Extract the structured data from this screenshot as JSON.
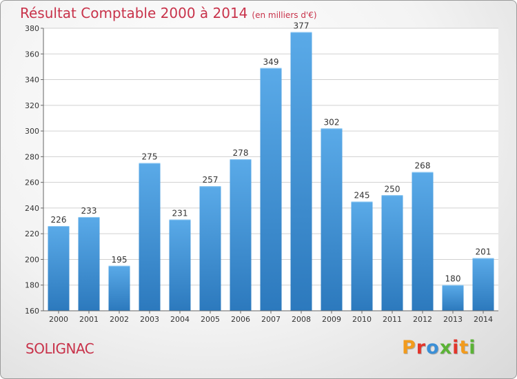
{
  "chart_data": {
    "type": "bar",
    "title": "Résultat Comptable 2000 à 2014",
    "subtitle": "(en milliers d'€)",
    "categories": [
      "2000",
      "2001",
      "2002",
      "2003",
      "2004",
      "2005",
      "2006",
      "2007",
      "2008",
      "2009",
      "2010",
      "2011",
      "2012",
      "2013",
      "2014"
    ],
    "values": [
      226,
      233,
      195,
      275,
      231,
      257,
      278,
      349,
      377,
      302,
      245,
      250,
      268,
      180,
      201
    ],
    "ylim": [
      160,
      380
    ],
    "yticks": [
      160,
      180,
      200,
      220,
      240,
      260,
      280,
      300,
      320,
      340,
      360,
      380
    ],
    "grid": true,
    "xlabel": "",
    "ylabel": ""
  },
  "commune": "SOLIGNAC",
  "brand": {
    "letters": [
      "P",
      "r",
      "o",
      "x",
      "i",
      "t",
      "i"
    ],
    "colors": [
      "#f29b1d",
      "#e2352b",
      "#3b8fd6",
      "#5bb336",
      "#e2352b",
      "#f29b1d",
      "#5bb336"
    ]
  },
  "colors": {
    "accent": "#c8324a",
    "bar_top": "#5aaae8",
    "bar_bottom": "#2c79bd"
  }
}
